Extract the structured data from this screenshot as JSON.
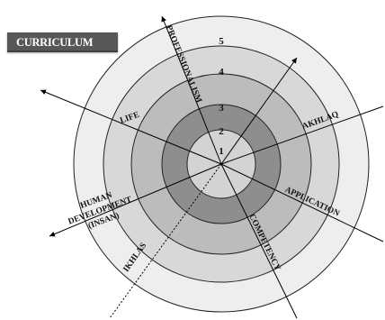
{
  "title": "CURRICULUM",
  "rings": [
    "1",
    "2",
    "3",
    "4",
    "5"
  ],
  "ring_fills": [
    "#d3d3d3",
    "#8e8e8e",
    "#bcbcbc",
    "#d8d8d8",
    "#eeeeee"
  ],
  "labels": {
    "professionalism": "PROFESSIONALISM",
    "akhlaq": "AKHLAQ",
    "application": "APPLICATION",
    "competency": "COMPETENCY",
    "ikhlas": "IKHLAS",
    "human_line1": "HUMAN",
    "human_line2": "DEVELOPMENT",
    "human_line3": "(INSAN)",
    "life": "LIFE"
  }
}
